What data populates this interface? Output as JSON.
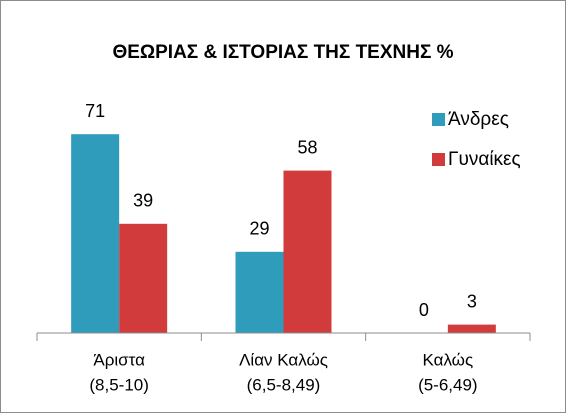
{
  "chart_data": {
    "type": "bar",
    "title": "ΘΕΩΡΙΑΣ & ΙΣΤΟΡΙΑΣ ΤΗΣ ΤΕΧΝΗΣ %",
    "categories": [
      [
        "Άριστα",
        "(8,5-10)"
      ],
      [
        "Λίαν Καλώς",
        "(6,5-8,49)"
      ],
      [
        "Καλώς",
        "(5-6,49)"
      ]
    ],
    "series": [
      {
        "name": "Άνδρες",
        "color": "#2f9cbc",
        "values": [
          71,
          29,
          0
        ]
      },
      {
        "name": "Γυναίκες",
        "color": "#d23b3b",
        "values": [
          39,
          58,
          3
        ]
      }
    ],
    "ylim": [
      0,
      80
    ],
    "legend": "right"
  }
}
